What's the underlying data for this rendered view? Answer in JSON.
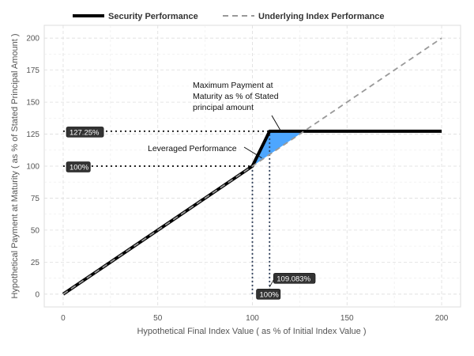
{
  "chart_data": {
    "type": "line",
    "x_axis": {
      "title": "Hypothetical Final Index Value ( as % of Initial Index Value )",
      "range": [
        -10,
        210
      ],
      "ticks": [
        0,
        50,
        100,
        150,
        200
      ],
      "tick_labels": [
        "0",
        "50",
        "100",
        "150",
        "200"
      ]
    },
    "y_axis": {
      "title": "Hypothetical Payment at Maturity ( as % of Stated Principal Amount )",
      "range": [
        -10,
        210
      ],
      "ticks": [
        0,
        25,
        50,
        75,
        100,
        125,
        150,
        175,
        200
      ],
      "tick_labels": [
        "0",
        "25",
        "50",
        "75",
        "100",
        "125",
        "150",
        "175",
        "200"
      ]
    },
    "grid": true,
    "legend": {
      "placement": "top",
      "entries": [
        {
          "name": "Security Performance",
          "style": "solid",
          "color": "#000000"
        },
        {
          "name": "Underlying Index Performance",
          "style": "dashed",
          "color": "#999999"
        }
      ]
    },
    "series": [
      {
        "name": "Security Performance",
        "x": [
          0,
          100,
          109.083,
          200
        ],
        "y": [
          0,
          100,
          127.25,
          127.25
        ],
        "color": "#000000"
      },
      {
        "name": "Underlying Index Performance",
        "x": [
          0,
          200
        ],
        "y": [
          0,
          200
        ],
        "color": "#999999"
      }
    ],
    "shaded_region": {
      "name": "Leveraged Performance",
      "color": "#4da6ff",
      "points": [
        [
          100,
          100
        ],
        [
          109.083,
          127.25
        ],
        [
          127.25,
          127.25
        ]
      ]
    },
    "reference_lines": [
      {
        "orientation": "horizontal",
        "value": 127.25,
        "from": 0,
        "to": 109.083
      },
      {
        "orientation": "horizontal",
        "value": 100,
        "from": 0,
        "to": 100
      },
      {
        "orientation": "vertical",
        "value": 100,
        "from": 0,
        "to": 100
      },
      {
        "orientation": "vertical",
        "value": 109.083,
        "from": 0,
        "to": 127.25
      }
    ],
    "value_labels": [
      {
        "text": "127.25%",
        "x": 0,
        "y": 127.25
      },
      {
        "text": "100%",
        "x": 0,
        "y": 100
      },
      {
        "text": "100%",
        "x": 100,
        "y": 0
      },
      {
        "text": "109.083%",
        "x": 109.083,
        "y": 0
      }
    ],
    "annotations": [
      {
        "lines": [
          "Maximum Payment at",
          "Maturity as % of Stated",
          "principal amount"
        ],
        "target": [
          118,
          127.25
        ]
      },
      {
        "lines": [
          "Leveraged Performance"
        ],
        "target": [
          105,
          107
        ]
      }
    ],
    "colors": {
      "background": "#ffffff",
      "panel": "#ffffff",
      "grid": "#dddddd",
      "label_box": "#333333"
    }
  }
}
